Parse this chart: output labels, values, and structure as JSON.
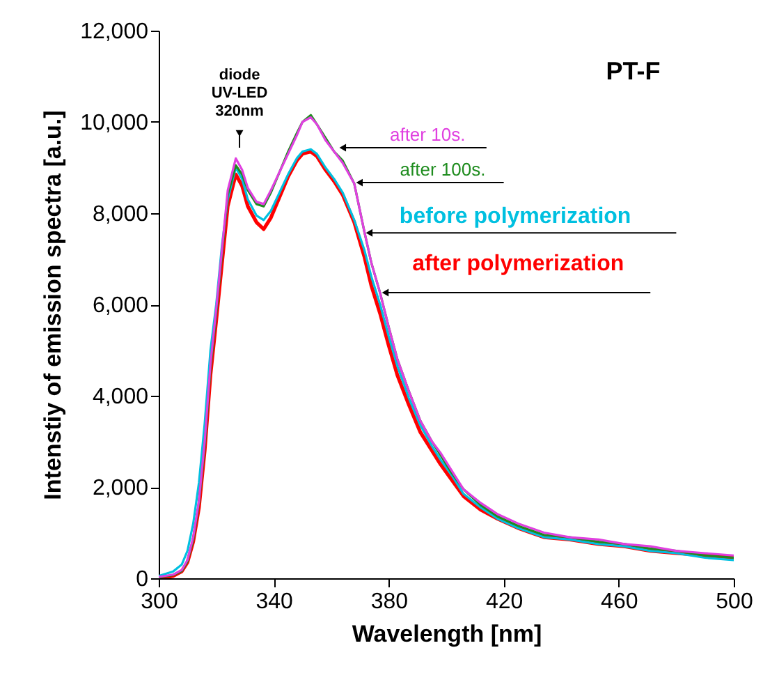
{
  "chart_data": {
    "type": "line",
    "title": "PT-F",
    "xlabel": "Wavelength [nm]",
    "ylabel": "Intenstiy of emission spectra [a.u.]",
    "annotations": [
      {
        "text": "diode UV-LED 320nm",
        "x": 326.8,
        "y": 9200
      }
    ],
    "x": [
      300,
      305,
      308,
      310,
      312,
      314,
      316,
      318,
      320,
      322,
      324,
      326.8,
      329,
      331,
      334,
      336.5,
      339,
      342,
      345,
      348,
      350,
      352.9,
      355,
      358,
      361,
      364,
      368,
      371.5,
      374,
      377,
      380,
      383,
      387,
      391,
      395,
      398,
      402,
      406,
      412,
      418,
      425,
      434,
      443,
      453,
      462,
      471,
      480,
      490,
      500
    ],
    "series": [
      {
        "name": "after 10s.",
        "color": "#e040e0",
        "values": [
          30,
          80,
          180,
          400,
          900,
          1700,
          3000,
          4700,
          5900,
          7200,
          8500,
          9200,
          8950,
          8550,
          8250,
          8200,
          8500,
          8900,
          9300,
          9700,
          10000,
          10100,
          9950,
          9600,
          9350,
          9100,
          8650,
          7600,
          6900,
          6250,
          5500,
          4800,
          4100,
          3450,
          3000,
          2750,
          2350,
          1950,
          1650,
          1400,
          1200,
          1000,
          900,
          850,
          750,
          700,
          600,
          550,
          500
        ]
      },
      {
        "name": "after 100s.",
        "color": "#1e8c1e",
        "values": [
          20,
          70,
          160,
          370,
          850,
          1650,
          2900,
          4600,
          5800,
          7100,
          8400,
          9050,
          8850,
          8500,
          8200,
          8150,
          8450,
          8900,
          9350,
          9750,
          10000,
          10150,
          9950,
          9650,
          9350,
          9150,
          8650,
          7600,
          6900,
          6250,
          5500,
          4800,
          4100,
          3450,
          3000,
          2700,
          2300,
          1950,
          1600,
          1350,
          1150,
          950,
          900,
          800,
          750,
          650,
          600,
          500,
          450
        ]
      },
      {
        "name": "before polymerization",
        "color": "#00c0e0",
        "values": [
          50,
          150,
          300,
          600,
          1200,
          2100,
          3400,
          5000,
          6000,
          7300,
          8300,
          9000,
          8750,
          8300,
          7950,
          7850,
          8050,
          8450,
          8850,
          9200,
          9350,
          9400,
          9300,
          9000,
          8750,
          8450,
          7850,
          7200,
          6600,
          6000,
          5300,
          4650,
          3950,
          3350,
          2900,
          2600,
          2250,
          1850,
          1550,
          1300,
          1100,
          900,
          850,
          750,
          700,
          600,
          550,
          450,
          400
        ]
      },
      {
        "name": "after polymerization",
        "color": "#ff0000",
        "values": [
          0,
          50,
          150,
          350,
          800,
          1550,
          2800,
          4450,
          5650,
          6900,
          8150,
          8850,
          8600,
          8150,
          7800,
          7650,
          7900,
          8350,
          8800,
          9150,
          9300,
          9350,
          9250,
          8950,
          8700,
          8400,
          7800,
          7050,
          6400,
          5800,
          5100,
          4450,
          3800,
          3200,
          2800,
          2500,
          2150,
          1800,
          1500,
          1300,
          1100,
          900,
          850,
          750,
          700,
          600,
          550,
          500,
          450
        ]
      }
    ],
    "xlim": [
      300,
      500
    ],
    "xticks": [
      300,
      340,
      380,
      420,
      460,
      500
    ],
    "ylim": [
      0,
      12000
    ],
    "yticks": [
      0,
      {
        "value": 2000,
        "label": "2,000"
      },
      {
        "value": 4000,
        "label": "4,000"
      },
      {
        "value": 6000,
        "label": "6,000"
      },
      {
        "value": 8000,
        "label": "8,000"
      },
      {
        "value": 10000,
        "label": "10,000"
      },
      {
        "value": 12000,
        "label": "12,000"
      }
    ]
  }
}
